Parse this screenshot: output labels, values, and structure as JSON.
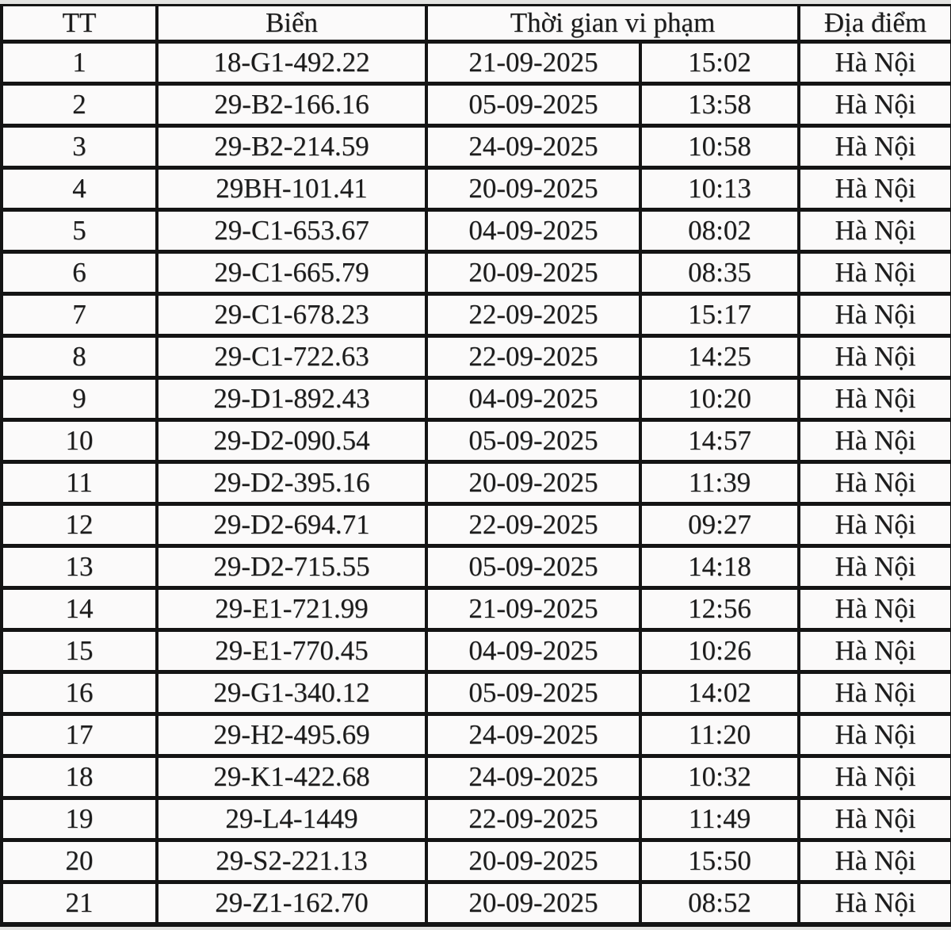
{
  "colors": {
    "border": "#141414",
    "cell_background": "#fbfafa",
    "page_background": "#e3e3e1",
    "text": "#1c1c1c"
  },
  "table": {
    "headers": {
      "tt": "TT",
      "bien": "Biển",
      "thoi_gian_vi_pham": "Thời gian vi phạm",
      "dia_diem": "Địa điểm"
    },
    "rows": [
      {
        "tt": "1",
        "bien": "18-G1-492.22",
        "date": "21-09-2025",
        "time": "15:02",
        "location": "Hà Nội"
      },
      {
        "tt": "2",
        "bien": "29-B2-166.16",
        "date": "05-09-2025",
        "time": "13:58",
        "location": "Hà Nội"
      },
      {
        "tt": "3",
        "bien": "29-B2-214.59",
        "date": "24-09-2025",
        "time": "10:58",
        "location": "Hà Nội"
      },
      {
        "tt": "4",
        "bien": "29BH-101.41",
        "date": "20-09-2025",
        "time": "10:13",
        "location": "Hà Nội"
      },
      {
        "tt": "5",
        "bien": "29-C1-653.67",
        "date": "04-09-2025",
        "time": "08:02",
        "location": "Hà Nội"
      },
      {
        "tt": "6",
        "bien": "29-C1-665.79",
        "date": "20-09-2025",
        "time": "08:35",
        "location": "Hà Nội"
      },
      {
        "tt": "7",
        "bien": "29-C1-678.23",
        "date": "22-09-2025",
        "time": "15:17",
        "location": "Hà Nội"
      },
      {
        "tt": "8",
        "bien": "29-C1-722.63",
        "date": "22-09-2025",
        "time": "14:25",
        "location": "Hà Nội"
      },
      {
        "tt": "9",
        "bien": "29-D1-892.43",
        "date": "04-09-2025",
        "time": "10:20",
        "location": "Hà Nội"
      },
      {
        "tt": "10",
        "bien": "29-D2-090.54",
        "date": "05-09-2025",
        "time": "14:57",
        "location": "Hà Nội"
      },
      {
        "tt": "11",
        "bien": "29-D2-395.16",
        "date": "20-09-2025",
        "time": "11:39",
        "location": "Hà Nội"
      },
      {
        "tt": "12",
        "bien": "29-D2-694.71",
        "date": "22-09-2025",
        "time": "09:27",
        "location": "Hà Nội"
      },
      {
        "tt": "13",
        "bien": "29-D2-715.55",
        "date": "05-09-2025",
        "time": "14:18",
        "location": "Hà Nội"
      },
      {
        "tt": "14",
        "bien": "29-E1-721.99",
        "date": "21-09-2025",
        "time": "12:56",
        "location": "Hà Nội"
      },
      {
        "tt": "15",
        "bien": "29-E1-770.45",
        "date": "04-09-2025",
        "time": "10:26",
        "location": "Hà Nội"
      },
      {
        "tt": "16",
        "bien": "29-G1-340.12",
        "date": "05-09-2025",
        "time": "14:02",
        "location": "Hà Nội"
      },
      {
        "tt": "17",
        "bien": "29-H2-495.69",
        "date": "24-09-2025",
        "time": "11:20",
        "location": "Hà Nội"
      },
      {
        "tt": "18",
        "bien": "29-K1-422.68",
        "date": "24-09-2025",
        "time": "10:32",
        "location": "Hà Nội"
      },
      {
        "tt": "19",
        "bien": "29-L4-1449",
        "date": "22-09-2025",
        "time": "11:49",
        "location": "Hà Nội"
      },
      {
        "tt": "20",
        "bien": "29-S2-221.13",
        "date": "20-09-2025",
        "time": "15:50",
        "location": "Hà Nội"
      },
      {
        "tt": "21",
        "bien": "29-Z1-162.70",
        "date": "20-09-2025",
        "time": "08:52",
        "location": "Hà Nội"
      }
    ]
  }
}
